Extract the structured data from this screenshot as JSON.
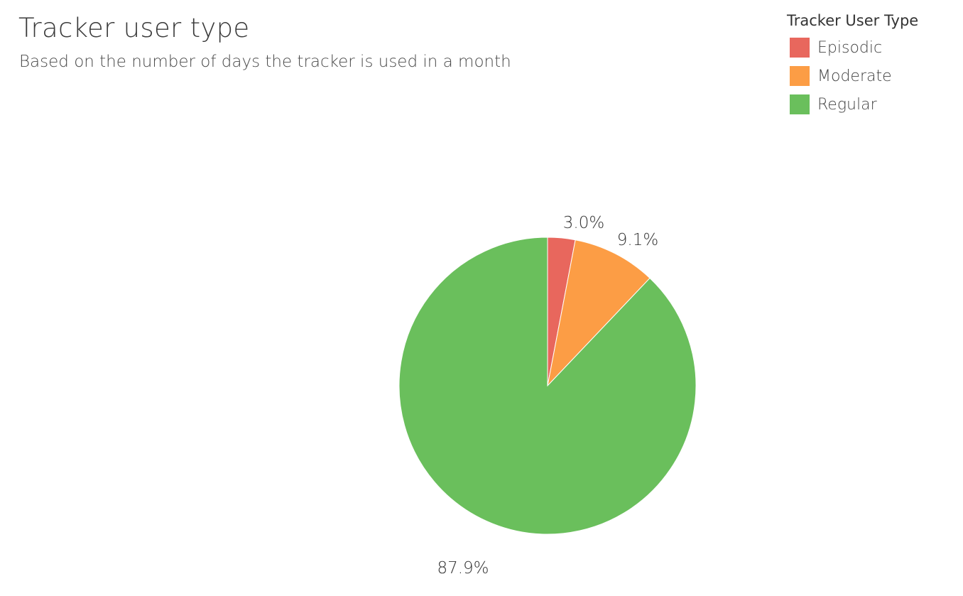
{
  "chart_data": {
    "type": "pie",
    "title": "Tracker user type",
    "subtitle": "Based on the number of days the tracker is used in a month",
    "legend": {
      "title": "Tracker User Type",
      "placement": "top-right"
    },
    "slices": [
      {
        "name": "Episodic",
        "value": 3.0,
        "label": "3.0%",
        "color": "#e8675d"
      },
      {
        "name": "Moderate",
        "value": 9.1,
        "label": "9.1%",
        "color": "#fc9d45"
      },
      {
        "name": "Regular",
        "value": 87.9,
        "label": "87.9%",
        "color": "#6abf5c"
      }
    ]
  }
}
